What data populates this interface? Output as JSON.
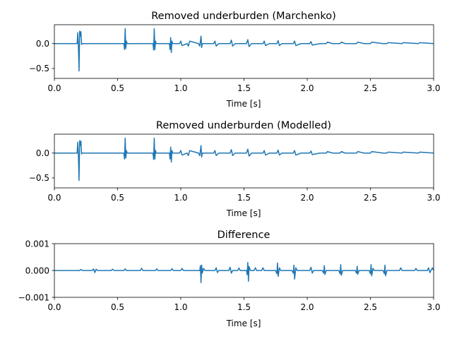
{
  "chart_data": [
    {
      "type": "line",
      "title": "Removed underburden (Marchenko)",
      "xlabel": "Time [s]",
      "ylabel": "",
      "xlim": [
        0,
        3
      ],
      "ylim": [
        -0.7,
        0.38
      ],
      "xticks": [
        0,
        0.5,
        1,
        1.5,
        2,
        2.5,
        3
      ],
      "xtick_labels": [
        "0.0",
        "0.5",
        "1.0",
        "1.5",
        "2.0",
        "2.5",
        "3.0"
      ],
      "yticks": [
        0,
        -0.5
      ],
      "ytick_labels": [
        "0.0",
        "−0.5"
      ],
      "color": "#1f77b4",
      "series": [
        {
          "x": [
            0,
            0.18,
            0.185,
            0.19,
            0.195,
            0.2,
            0.205,
            0.21,
            0.215,
            0.22,
            0.3,
            0.55,
            0.555,
            0.56,
            0.565,
            0.57,
            0.575,
            0.6,
            0.78,
            0.785,
            0.79,
            0.795,
            0.8,
            0.805,
            0.83,
            0.91,
            0.915,
            0.92,
            0.925,
            0.93,
            0.935,
            0.96,
            0.99,
            1.0,
            1.01,
            1.05,
            1.06,
            1.07,
            1.14,
            1.15,
            1.16,
            1.165,
            1.17,
            1.2,
            1.26,
            1.27,
            1.28,
            1.3,
            1.39,
            1.4,
            1.41,
            1.43,
            1.52,
            1.53,
            1.54,
            1.56,
            1.65,
            1.66,
            1.67,
            1.7,
            1.76,
            1.77,
            1.78,
            1.8,
            1.89,
            1.9,
            1.91,
            1.95,
            2.02,
            2.03,
            2.04,
            2.1,
            2.15,
            2.16,
            2.2,
            2.26,
            2.27,
            2.3,
            2.39,
            2.4,
            2.45,
            2.5,
            2.51,
            2.6,
            2.63,
            2.64,
            2.75,
            2.76,
            2.88,
            2.89,
            3.0
          ],
          "y": [
            0,
            0,
            0.22,
            -0.05,
            -0.55,
            0.25,
            0.15,
            0.24,
            -0.02,
            0,
            0,
            0,
            -0.12,
            0.3,
            -0.1,
            0.05,
            0,
            0,
            0,
            -0.13,
            0.3,
            -0.12,
            0.05,
            0,
            0,
            0,
            -0.12,
            0.12,
            -0.18,
            0.05,
            0,
            0,
            0,
            0.05,
            -0.04,
            0,
            -0.05,
            0.05,
            0,
            -0.05,
            0.15,
            -0.08,
            0,
            0,
            0,
            0.05,
            -0.05,
            0,
            0,
            0.07,
            -0.05,
            0,
            0,
            0.08,
            -0.06,
            0,
            0,
            0.05,
            -0.04,
            0,
            0,
            0.06,
            -0.04,
            0,
            0,
            0.05,
            -0.04,
            0,
            0,
            0.04,
            -0.03,
            0,
            0,
            0.03,
            0,
            0,
            0.03,
            0,
            0,
            0.03,
            0,
            0,
            0.03,
            0,
            0,
            0.02,
            0,
            0.02,
            0,
            0.02,
            0
          ]
        }
      ]
    },
    {
      "type": "line",
      "title": "Removed underburden (Modelled)",
      "xlabel": "Time [s]",
      "ylabel": "",
      "xlim": [
        0,
        3
      ],
      "ylim": [
        -0.7,
        0.38
      ],
      "xticks": [
        0,
        0.5,
        1,
        1.5,
        2,
        2.5,
        3
      ],
      "xtick_labels": [
        "0.0",
        "0.5",
        "1.0",
        "1.5",
        "2.0",
        "2.5",
        "3.0"
      ],
      "yticks": [
        0,
        -0.5
      ],
      "ytick_labels": [
        "0.0",
        "−0.5"
      ],
      "color": "#1f77b4",
      "series": [
        {
          "x": [
            0,
            0.18,
            0.185,
            0.19,
            0.195,
            0.2,
            0.205,
            0.21,
            0.215,
            0.22,
            0.3,
            0.55,
            0.555,
            0.56,
            0.565,
            0.57,
            0.575,
            0.6,
            0.78,
            0.785,
            0.79,
            0.795,
            0.8,
            0.805,
            0.83,
            0.91,
            0.915,
            0.92,
            0.925,
            0.93,
            0.935,
            0.96,
            0.99,
            1.0,
            1.01,
            1.05,
            1.06,
            1.07,
            1.14,
            1.15,
            1.16,
            1.165,
            1.17,
            1.2,
            1.26,
            1.27,
            1.28,
            1.3,
            1.39,
            1.4,
            1.41,
            1.43,
            1.52,
            1.53,
            1.54,
            1.56,
            1.65,
            1.66,
            1.67,
            1.7,
            1.76,
            1.77,
            1.78,
            1.8,
            1.89,
            1.9,
            1.91,
            1.95,
            2.02,
            2.03,
            2.04,
            2.1,
            2.15,
            2.16,
            2.2,
            2.26,
            2.27,
            2.3,
            2.39,
            2.4,
            2.45,
            2.5,
            2.51,
            2.6,
            2.63,
            2.64,
            2.75,
            2.76,
            2.88,
            2.89,
            3.0
          ],
          "y": [
            0,
            0,
            0.22,
            -0.05,
            -0.55,
            0.25,
            0.15,
            0.24,
            -0.02,
            0,
            0,
            0,
            -0.12,
            0.3,
            -0.1,
            0.05,
            0,
            0,
            0,
            -0.13,
            0.3,
            -0.12,
            0.05,
            0,
            0,
            0,
            -0.12,
            0.12,
            -0.18,
            0.05,
            0,
            0,
            0,
            0.05,
            -0.04,
            0,
            -0.05,
            0.05,
            0,
            -0.05,
            0.15,
            -0.08,
            0,
            0,
            0,
            0.05,
            -0.05,
            0,
            0,
            0.07,
            -0.05,
            0,
            0,
            0.08,
            -0.06,
            0,
            0,
            0.05,
            -0.04,
            0,
            0,
            0.06,
            -0.04,
            0,
            0,
            0.05,
            -0.04,
            0,
            0,
            0.04,
            -0.03,
            0,
            0,
            0.03,
            0,
            0,
            0.03,
            0,
            0,
            0.03,
            0,
            0,
            0.03,
            0,
            0,
            0.02,
            0,
            0.02,
            0,
            0.02,
            0
          ]
        }
      ]
    },
    {
      "type": "line",
      "title": "Difference",
      "xlabel": "Time [s]",
      "ylabel": "",
      "xlim": [
        0,
        3
      ],
      "ylim": [
        -0.001,
        0.001
      ],
      "xticks": [
        0,
        0.5,
        1,
        1.5,
        2,
        2.5,
        3
      ],
      "xtick_labels": [
        "0.0",
        "0.5",
        "1.0",
        "1.5",
        "2.0",
        "2.5",
        "3.0"
      ],
      "yticks": [
        0.001,
        0,
        -0.001
      ],
      "ytick_labels": [
        "0.001",
        "0.000",
        "−0.001"
      ],
      "color": "#1f77b4",
      "series": [
        {
          "x": [
            0,
            0.2,
            0.21,
            0.22,
            0.3,
            0.31,
            0.32,
            0.33,
            0.34,
            0.45,
            0.46,
            0.47,
            0.55,
            0.56,
            0.57,
            0.68,
            0.69,
            0.7,
            0.8,
            0.81,
            0.82,
            0.92,
            0.93,
            0.94,
            1.0,
            1.01,
            1.02,
            1.1,
            1.15,
            1.155,
            1.16,
            1.165,
            1.17,
            1.18,
            1.19,
            1.27,
            1.28,
            1.29,
            1.3,
            1.38,
            1.39,
            1.4,
            1.41,
            1.45,
            1.46,
            1.47,
            1.52,
            1.525,
            1.53,
            1.535,
            1.54,
            1.55,
            1.58,
            1.59,
            1.6,
            1.64,
            1.65,
            1.66,
            1.75,
            1.76,
            1.765,
            1.77,
            1.78,
            1.79,
            1.88,
            1.89,
            1.895,
            1.9,
            1.91,
            1.92,
            2.02,
            2.03,
            2.04,
            2.05,
            2.12,
            2.13,
            2.135,
            2.14,
            2.15,
            2.2,
            2.25,
            2.26,
            2.265,
            2.27,
            2.28,
            2.38,
            2.39,
            2.395,
            2.4,
            2.41,
            2.49,
            2.5,
            2.505,
            2.51,
            2.52,
            2.53,
            2.6,
            2.61,
            2.615,
            2.62,
            2.63,
            2.7,
            2.73,
            2.74,
            2.75,
            2.85,
            2.86,
            2.87,
            2.9,
            2.95,
            2.96,
            2.97,
            2.99,
            3.0
          ],
          "y": [
            0,
            0,
            4e-05,
            0,
            0,
            6e-05,
            -8e-05,
            5e-05,
            0,
            0,
            5e-05,
            0,
            0,
            6e-05,
            0,
            0,
            8e-05,
            0,
            0,
            6e-05,
            0,
            0,
            7e-05,
            0,
            0,
            8e-05,
            0,
            0,
            0,
            0.00018,
            -0.00045,
            0.0002,
            -0.0001,
            8e-05,
            0,
            0,
            0.0001,
            -8e-05,
            0,
            0,
            0.00012,
            -0.0001,
            0,
            0,
            9e-05,
            0,
            0,
            -0.00015,
            0.0003,
            -0.0004,
            0.00015,
            0,
            0,
            0.0001,
            0,
            0,
            0.0001,
            0,
            0,
            -0.00012,
            0.00028,
            -0.00022,
            0.0001,
            0,
            0,
            -0.0001,
            0.0002,
            -0.00032,
            0.0001,
            0,
            0,
            0.00012,
            -0.0001,
            0,
            0,
            -0.0001,
            0.00018,
            -0.00015,
            0,
            0,
            0,
            -0.00012,
            0.00022,
            -0.00018,
            0,
            0,
            -0.0001,
            0.00016,
            -0.00014,
            0,
            0,
            -0.00012,
            0.00022,
            -0.0002,
            8e-05,
            0,
            0,
            -0.00012,
            0.0002,
            -0.0002,
            0,
            0,
            0,
            0.0001,
            0,
            0,
            8e-05,
            0,
            0,
            0,
            0.0001,
            -8e-05,
            0.0001,
            0
          ]
        }
      ]
    }
  ]
}
